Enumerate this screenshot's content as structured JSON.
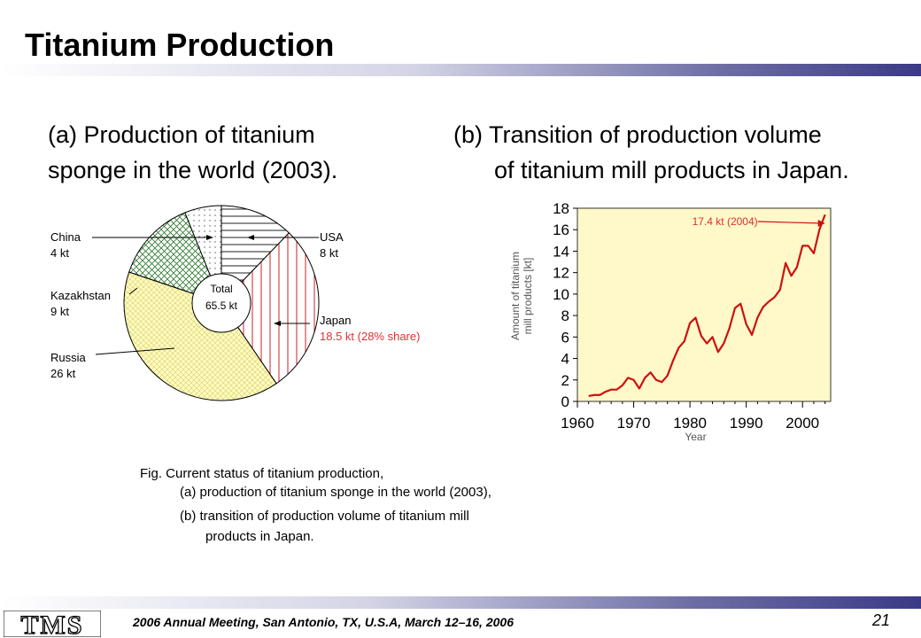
{
  "slide": {
    "title": "Titanium Production",
    "page_number": "21",
    "footer": "2006 Annual Meeting, San Antonio, TX, U.S.A, March 12–16, 2006",
    "logo_text": "TMS"
  },
  "captions": {
    "a_line1": "(a) Production of titanium",
    "a_line2": "sponge in the world (2003).",
    "b_line1": "(b) Transition of production volume",
    "b_line2": "of titanium mill products in Japan."
  },
  "pie_labels": {
    "china_name": "China",
    "china_value": "4 kt",
    "usa_name": "USA",
    "usa_value": "8 kt",
    "kazakhstan_name": "Kazakhstan",
    "kazakhstan_value": "9 kt",
    "japan_name": "Japan",
    "japan_value": "18.5 kt (28% share)",
    "russia_name": "Russia",
    "russia_value": "26 kt",
    "total_label": "Total",
    "total_value": "65.5 kt"
  },
  "figure_caption": {
    "line1": "Fig.  Current status of titanium production,",
    "line2": "(a) production of titanium sponge in the world (2003),",
    "line3": "(b) transition of production volume of titanium mill",
    "line4": "products in Japan."
  },
  "chart_data": [
    {
      "type": "pie",
      "slices": [
        {
          "name": "USA",
          "value": 8
        },
        {
          "name": "Japan",
          "value": 18.5
        },
        {
          "name": "Russia",
          "value": 26
        },
        {
          "name": "Kazakhstan",
          "value": 9
        },
        {
          "name": "China",
          "value": 4
        }
      ],
      "colors": {
        "japan_hatch": "#cc2222",
        "russia_fill": "#ffffc0",
        "kazakhstan_hatch": "#2d7a2d"
      }
    },
    {
      "type": "line",
      "xlabel": "Year",
      "ylabel": "Amount of titanium mill products [kt]",
      "xlim": [
        1960,
        2005
      ],
      "ylim": [
        0,
        18
      ],
      "x_ticks": [
        1960,
        1970,
        1980,
        1990,
        2000
      ],
      "y_ticks": [
        0,
        2,
        4,
        6,
        8,
        10,
        12,
        14,
        16,
        18
      ],
      "annotation": "17.4 kt (2004)",
      "background": "#fff8c8",
      "line_color": "#cc1111",
      "series": [
        {
          "x": [
            1962,
            1963,
            1964,
            1965,
            1966,
            1967,
            1968,
            1969,
            1970,
            1971,
            1972,
            1973,
            1974,
            1975,
            1976,
            1977,
            1978,
            1979,
            1980,
            1981,
            1982,
            1983,
            1984,
            1985,
            1986,
            1987,
            1988,
            1989,
            1990,
            1991,
            1992,
            1993,
            1994,
            1995,
            1996,
            1997,
            1998,
            1999,
            2000,
            2001,
            2002,
            2003,
            2004
          ],
          "y": [
            0.5,
            0.6,
            0.6,
            0.9,
            1.1,
            1.1,
            1.5,
            2.2,
            2.0,
            1.2,
            2.2,
            2.7,
            2.0,
            1.8,
            2.4,
            3.8,
            5.0,
            5.6,
            7.3,
            7.8,
            6.1,
            5.4,
            6.0,
            4.6,
            5.4,
            6.8,
            8.7,
            9.1,
            7.2,
            6.2,
            7.8,
            8.8,
            9.3,
            9.7,
            10.4,
            12.9,
            11.7,
            12.5,
            14.5,
            14.5,
            13.8,
            16.0,
            17.4
          ]
        }
      ]
    }
  ]
}
